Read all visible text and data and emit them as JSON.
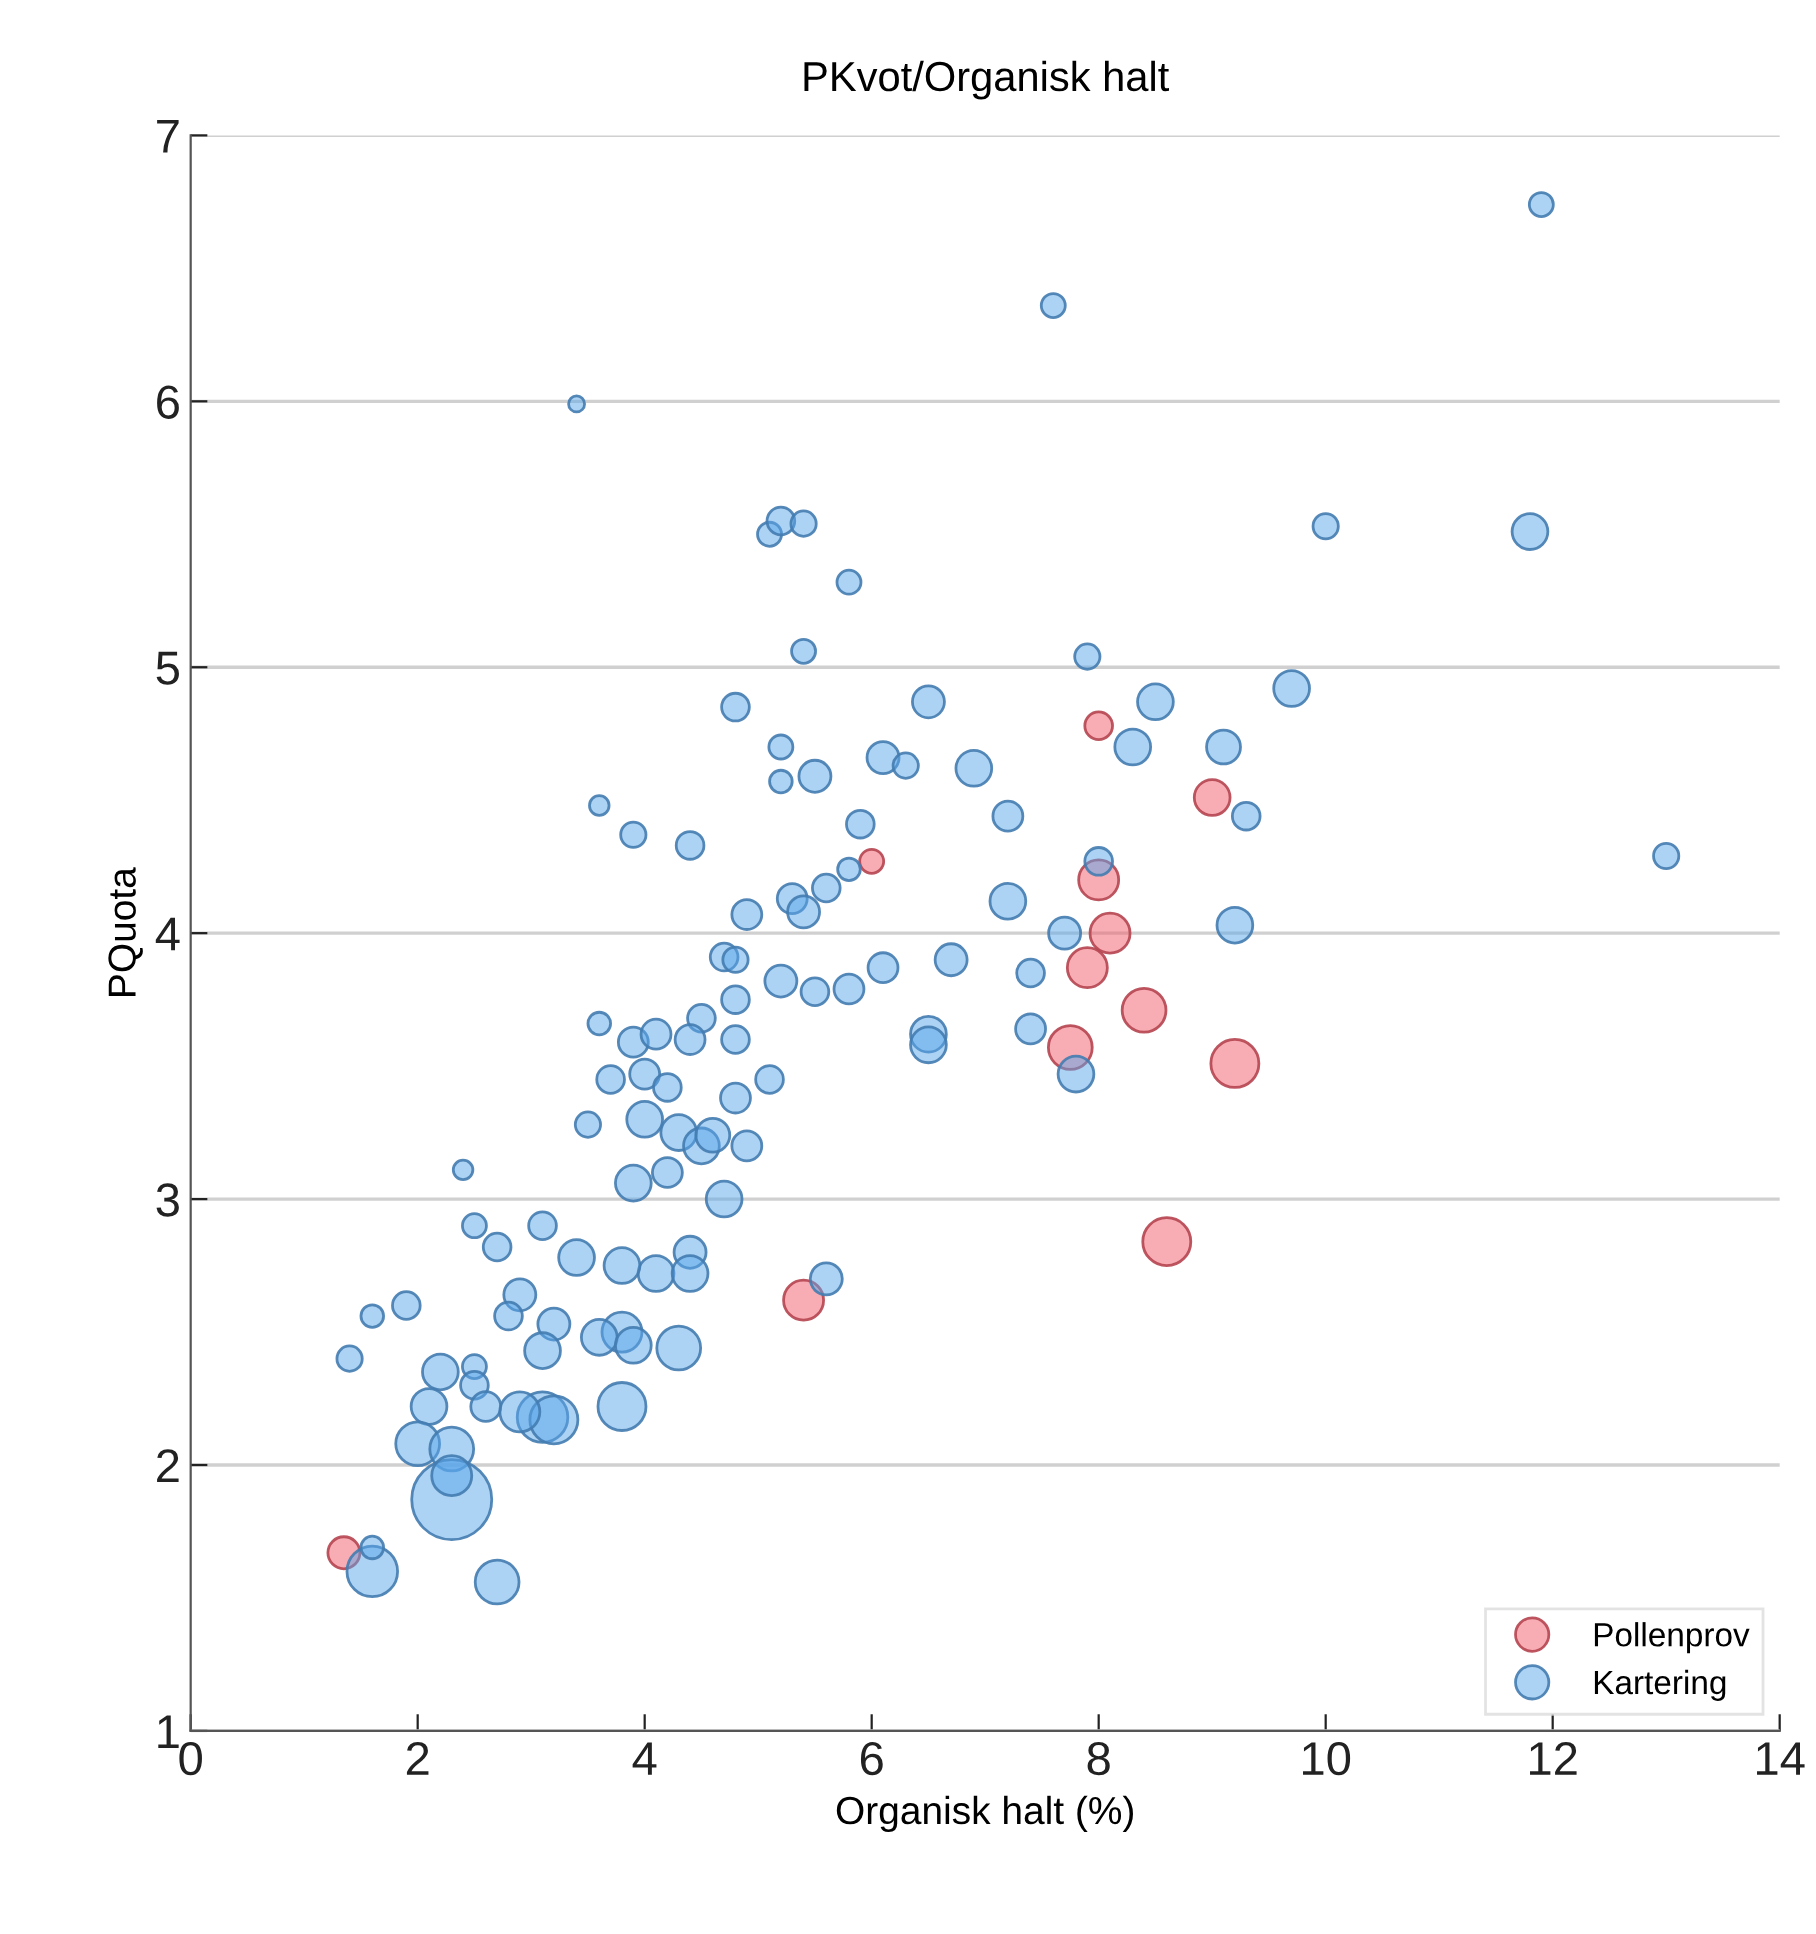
{
  "chart_data": {
    "type": "bubble",
    "title": "PKvot/Organisk halt",
    "xlabel": "Organisk halt (%)",
    "ylabel": "PQuota",
    "xlim": [
      0,
      14
    ],
    "ylim": [
      1,
      7
    ],
    "xticks": [
      0,
      2,
      4,
      6,
      8,
      10,
      12,
      14
    ],
    "yticks": [
      1,
      2,
      3,
      4,
      5,
      6,
      7
    ],
    "grid": "y",
    "legend": "bottom right",
    "marker": "circle",
    "relative": false,
    "series": [
      {
        "name": "Pollenprov",
        "color": "#f25c6a",
        "x": [
          1.35,
          8.0,
          6.0,
          9.0,
          8.0,
          8.1,
          7.9,
          7.75,
          8.4,
          9.2,
          8.6,
          5.4
        ],
        "values": [
          1.67,
          4.78,
          4.27,
          4.51,
          4.2,
          4.0,
          3.87,
          3.57,
          3.71,
          3.51,
          2.84,
          2.62
        ],
        "sizes": [
          0.16,
          0.12,
          0.09,
          0.2,
          0.25,
          0.25,
          0.25,
          0.3,
          0.3,
          0.36,
          0.36,
          0.25
        ]
      },
      {
        "name": "Kartering",
        "color": "#5aa5ea",
        "x": [
          11.9,
          7.6,
          3.4,
          5.1,
          5.2,
          5.4,
          10.0,
          11.8,
          5.8,
          5.4,
          7.9,
          4.8,
          6.5,
          8.5,
          9.7,
          5.2,
          6.1,
          6.3,
          6.9,
          8.3,
          9.1,
          3.6,
          3.9,
          4.4,
          5.2,
          5.5,
          7.2,
          9.3,
          5.9,
          13.0,
          8.0,
          5.8,
          5.6,
          5.3,
          5.4,
          4.9,
          7.2,
          9.2,
          7.7,
          4.7,
          4.8,
          6.1,
          6.7,
          7.4,
          5.2,
          5.5,
          5.8,
          4.8,
          4.5,
          3.6,
          3.9,
          4.1,
          4.4,
          4.8,
          6.5,
          6.5,
          7.4,
          7.8,
          3.7,
          4.0,
          4.2,
          5.1,
          4.8,
          3.5,
          4.0,
          4.3,
          4.5,
          4.6,
          4.9,
          4.2,
          3.9,
          4.7,
          2.4,
          2.5,
          3.1,
          2.7,
          3.4,
          4.4,
          4.1,
          3.8,
          4.4,
          1.6,
          1.9,
          1.4,
          2.9,
          2.8,
          3.2,
          3.8,
          4.3,
          3.6,
          3.9,
          5.6,
          2.2,
          2.5,
          2.5,
          2.6,
          3.1,
          2.1,
          2.0,
          2.3,
          3.1,
          3.2,
          2.9,
          3.8,
          2.3,
          1.6,
          1.6,
          2.7,
          2.3
        ],
        "values": [
          6.74,
          6.36,
          5.99,
          5.5,
          5.55,
          5.54,
          5.53,
          5.51,
          5.32,
          5.06,
          5.04,
          4.85,
          4.87,
          4.87,
          4.92,
          4.7,
          4.66,
          4.63,
          4.62,
          4.7,
          4.7,
          4.48,
          4.37,
          4.33,
          4.57,
          4.59,
          4.44,
          4.44,
          4.41,
          4.29,
          4.27,
          4.24,
          4.17,
          4.13,
          4.08,
          4.07,
          4.12,
          4.03,
          4.0,
          3.91,
          3.9,
          3.87,
          3.9,
          3.85,
          3.82,
          3.78,
          3.79,
          3.75,
          3.68,
          3.66,
          3.59,
          3.62,
          3.6,
          3.6,
          3.62,
          3.58,
          3.64,
          3.47,
          3.45,
          3.47,
          3.42,
          3.45,
          3.38,
          3.28,
          3.3,
          3.25,
          3.2,
          3.24,
          3.2,
          3.1,
          3.06,
          3.0,
          3.11,
          2.9,
          2.9,
          2.82,
          2.78,
          2.8,
          2.72,
          2.75,
          2.72,
          2.56,
          2.6,
          2.4,
          2.64,
          2.56,
          2.53,
          2.5,
          2.44,
          2.48,
          2.45,
          2.7,
          2.35,
          2.37,
          2.3,
          2.22,
          2.43,
          2.22,
          2.08,
          2.06,
          2.18,
          2.17,
          2.2,
          2.22,
          1.87,
          1.6,
          1.69,
          1.56,
          1.96
        ],
        "sizes": [
          0.09,
          0.09,
          0.04,
          0.09,
          0.12,
          0.1,
          0.1,
          0.2,
          0.09,
          0.09,
          0.1,
          0.12,
          0.16,
          0.2,
          0.2,
          0.09,
          0.16,
          0.1,
          0.2,
          0.2,
          0.18,
          0.06,
          0.1,
          0.12,
          0.08,
          0.16,
          0.14,
          0.12,
          0.12,
          0.1,
          0.12,
          0.08,
          0.12,
          0.14,
          0.16,
          0.14,
          0.2,
          0.2,
          0.16,
          0.12,
          0.1,
          0.14,
          0.16,
          0.12,
          0.16,
          0.12,
          0.14,
          0.12,
          0.12,
          0.08,
          0.14,
          0.14,
          0.14,
          0.12,
          0.2,
          0.2,
          0.14,
          0.2,
          0.12,
          0.14,
          0.12,
          0.12,
          0.14,
          0.1,
          0.2,
          0.2,
          0.2,
          0.18,
          0.14,
          0.14,
          0.2,
          0.2,
          0.06,
          0.09,
          0.12,
          0.12,
          0.2,
          0.16,
          0.2,
          0.2,
          0.2,
          0.08,
          0.12,
          0.1,
          0.16,
          0.12,
          0.16,
          0.25,
          0.3,
          0.2,
          0.2,
          0.16,
          0.2,
          0.09,
          0.12,
          0.14,
          0.2,
          0.2,
          0.3,
          0.3,
          0.4,
          0.36,
          0.25,
          0.36,
          1,
          0.4,
          0.08,
          0.3,
          0.25
        ]
      }
    ]
  }
}
